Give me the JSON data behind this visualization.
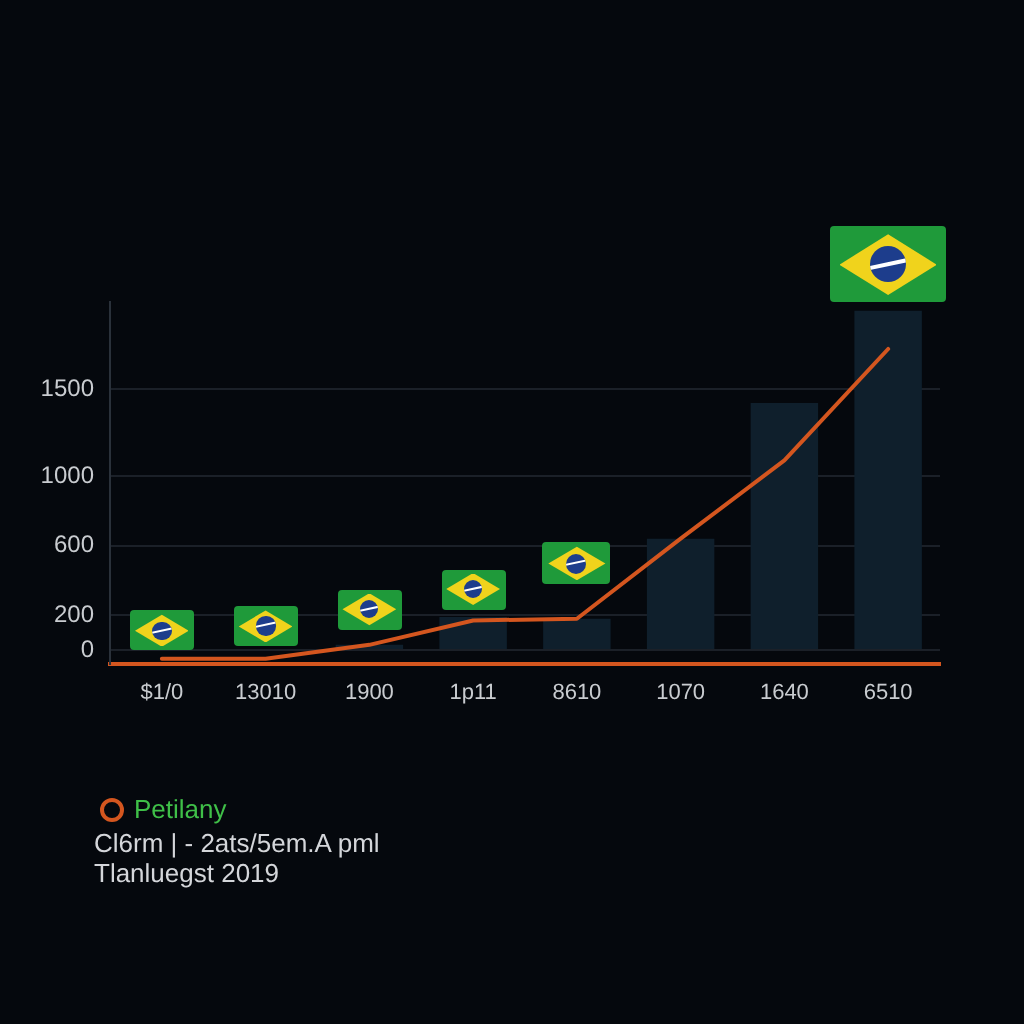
{
  "chart_data": {
    "type": "bar",
    "categories": [
      "$1/0",
      "13010",
      "1900",
      "1p11",
      "8610",
      "1070",
      "1640",
      "6510"
    ],
    "series": [
      {
        "color": "#0f1f2c",
        "values": [
          null,
          null,
          30,
          190,
          180,
          640,
          1420,
          1950
        ]
      },
      {
        "type": "line",
        "name": "Petilany",
        "color": "#d4561f",
        "values": [
          -50,
          -50,
          30,
          170,
          180,
          640,
          1090,
          1730
        ]
      }
    ],
    "ylim": [
      -80,
      2000
    ],
    "yticks": [
      0,
      200,
      600,
      1000,
      1500
    ],
    "grid": "y",
    "legend": "bottom left",
    "marker": "none",
    "line_style": "solid",
    "annotations": [
      "Cl6rm | - 2ats/5em.A pml",
      "Tlanluegst 2019"
    ]
  }
}
